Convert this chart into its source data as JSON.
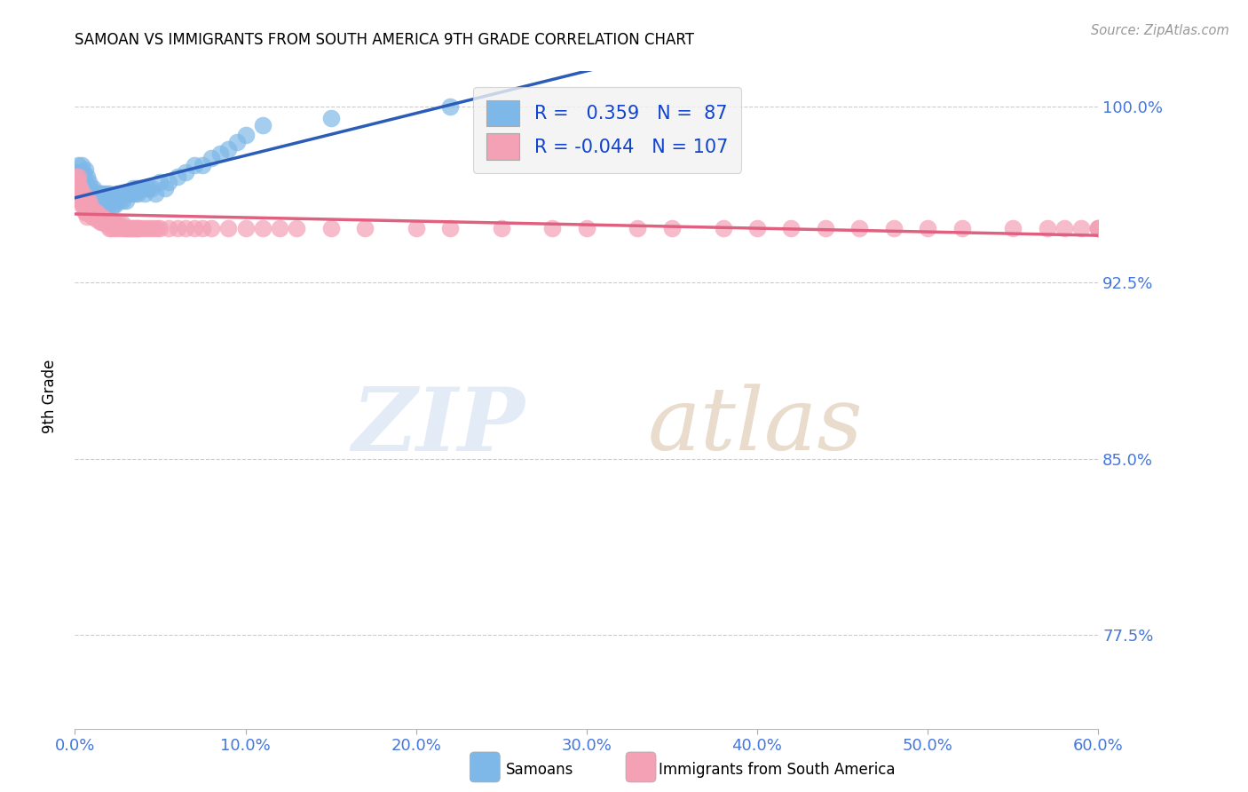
{
  "title": "SAMOAN VS IMMIGRANTS FROM SOUTH AMERICA 9TH GRADE CORRELATION CHART",
  "source": "Source: ZipAtlas.com",
  "ylabel_label": "9th Grade",
  "xlim": [
    0.0,
    0.6
  ],
  "ylim": [
    0.735,
    1.015
  ],
  "ytick_positions": [
    0.775,
    0.85,
    0.925,
    1.0
  ],
  "ytick_labels": [
    "77.5%",
    "85.0%",
    "92.5%",
    "100.0%"
  ],
  "xtick_positions": [
    0.0,
    0.1,
    0.2,
    0.3,
    0.4,
    0.5,
    0.6
  ],
  "xtick_labels": [
    "0.0%",
    "10.0%",
    "20.0%",
    "30.0%",
    "40.0%",
    "50.0%",
    "60.0%"
  ],
  "samoans_color": "#7EB8E8",
  "immigrants_color": "#F4A0B5",
  "trendline_samoan_color": "#2B5CB8",
  "trendline_immigrant_color": "#E06080",
  "R_samoan": 0.359,
  "N_samoan": 87,
  "R_immigrant": -0.044,
  "N_immigrant": 107,
  "samoans_x": [
    0.001,
    0.001,
    0.001,
    0.002,
    0.002,
    0.002,
    0.002,
    0.003,
    0.003,
    0.003,
    0.004,
    0.004,
    0.004,
    0.004,
    0.005,
    0.005,
    0.005,
    0.006,
    0.006,
    0.006,
    0.006,
    0.007,
    0.007,
    0.007,
    0.008,
    0.008,
    0.008,
    0.009,
    0.009,
    0.01,
    0.01,
    0.011,
    0.011,
    0.012,
    0.012,
    0.013,
    0.013,
    0.014,
    0.015,
    0.015,
    0.016,
    0.016,
    0.017,
    0.018,
    0.018,
    0.019,
    0.02,
    0.02,
    0.021,
    0.022,
    0.023,
    0.024,
    0.025,
    0.026,
    0.027,
    0.028,
    0.029,
    0.03,
    0.031,
    0.032,
    0.033,
    0.034,
    0.035,
    0.036,
    0.037,
    0.038,
    0.04,
    0.041,
    0.042,
    0.043,
    0.045,
    0.047,
    0.05,
    0.053,
    0.055,
    0.06,
    0.065,
    0.07,
    0.075,
    0.08,
    0.085,
    0.09,
    0.095,
    0.1,
    0.11,
    0.15,
    0.22
  ],
  "samoans_y": [
    0.965,
    0.97,
    0.972,
    0.963,
    0.968,
    0.972,
    0.975,
    0.963,
    0.968,
    0.972,
    0.96,
    0.965,
    0.97,
    0.975,
    0.963,
    0.968,
    0.972,
    0.958,
    0.963,
    0.968,
    0.973,
    0.96,
    0.965,
    0.97,
    0.958,
    0.963,
    0.968,
    0.96,
    0.965,
    0.958,
    0.963,
    0.96,
    0.965,
    0.958,
    0.963,
    0.958,
    0.963,
    0.96,
    0.958,
    0.963,
    0.958,
    0.963,
    0.96,
    0.958,
    0.963,
    0.96,
    0.958,
    0.963,
    0.96,
    0.958,
    0.958,
    0.96,
    0.963,
    0.96,
    0.963,
    0.96,
    0.963,
    0.96,
    0.963,
    0.963,
    0.963,
    0.965,
    0.963,
    0.965,
    0.963,
    0.965,
    0.965,
    0.963,
    0.965,
    0.965,
    0.965,
    0.963,
    0.968,
    0.965,
    0.968,
    0.97,
    0.972,
    0.975,
    0.975,
    0.978,
    0.98,
    0.982,
    0.985,
    0.988,
    0.992,
    0.995,
    1.0
  ],
  "immigrants_x": [
    0.001,
    0.001,
    0.002,
    0.002,
    0.002,
    0.003,
    0.003,
    0.003,
    0.004,
    0.004,
    0.004,
    0.005,
    0.005,
    0.005,
    0.006,
    0.006,
    0.006,
    0.007,
    0.007,
    0.008,
    0.008,
    0.008,
    0.009,
    0.009,
    0.01,
    0.01,
    0.011,
    0.011,
    0.012,
    0.012,
    0.013,
    0.013,
    0.014,
    0.015,
    0.015,
    0.016,
    0.016,
    0.017,
    0.018,
    0.019,
    0.02,
    0.021,
    0.022,
    0.023,
    0.024,
    0.025,
    0.026,
    0.027,
    0.028,
    0.029,
    0.03,
    0.031,
    0.032,
    0.033,
    0.034,
    0.035,
    0.036,
    0.037,
    0.038,
    0.04,
    0.042,
    0.044,
    0.046,
    0.048,
    0.05,
    0.055,
    0.06,
    0.065,
    0.07,
    0.075,
    0.08,
    0.09,
    0.1,
    0.11,
    0.12,
    0.13,
    0.15,
    0.17,
    0.2,
    0.22,
    0.25,
    0.28,
    0.3,
    0.33,
    0.35,
    0.38,
    0.4,
    0.42,
    0.44,
    0.46,
    0.48,
    0.5,
    0.52,
    0.55,
    0.57,
    0.58,
    0.59,
    0.6,
    0.6,
    0.6,
    0.001,
    0.002,
    0.003,
    0.004,
    0.005,
    0.006,
    0.007
  ],
  "immigrants_y": [
    0.965,
    0.968,
    0.963,
    0.965,
    0.968,
    0.96,
    0.963,
    0.965,
    0.958,
    0.96,
    0.963,
    0.958,
    0.96,
    0.963,
    0.955,
    0.958,
    0.96,
    0.958,
    0.96,
    0.955,
    0.958,
    0.96,
    0.955,
    0.958,
    0.953,
    0.955,
    0.953,
    0.955,
    0.953,
    0.955,
    0.952,
    0.955,
    0.953,
    0.951,
    0.953,
    0.951,
    0.953,
    0.951,
    0.95,
    0.95,
    0.948,
    0.948,
    0.95,
    0.948,
    0.95,
    0.948,
    0.95,
    0.948,
    0.95,
    0.948,
    0.948,
    0.948,
    0.948,
    0.948,
    0.948,
    0.948,
    0.948,
    0.948,
    0.948,
    0.948,
    0.948,
    0.948,
    0.948,
    0.948,
    0.948,
    0.948,
    0.948,
    0.948,
    0.948,
    0.948,
    0.948,
    0.948,
    0.948,
    0.948,
    0.948,
    0.948,
    0.948,
    0.948,
    0.948,
    0.948,
    0.948,
    0.948,
    0.948,
    0.948,
    0.948,
    0.948,
    0.948,
    0.948,
    0.948,
    0.948,
    0.948,
    0.948,
    0.948,
    0.948,
    0.948,
    0.948,
    0.948,
    0.948,
    0.948,
    0.948,
    0.97,
    0.97,
    0.965,
    0.96,
    0.958,
    0.955,
    0.953
  ]
}
